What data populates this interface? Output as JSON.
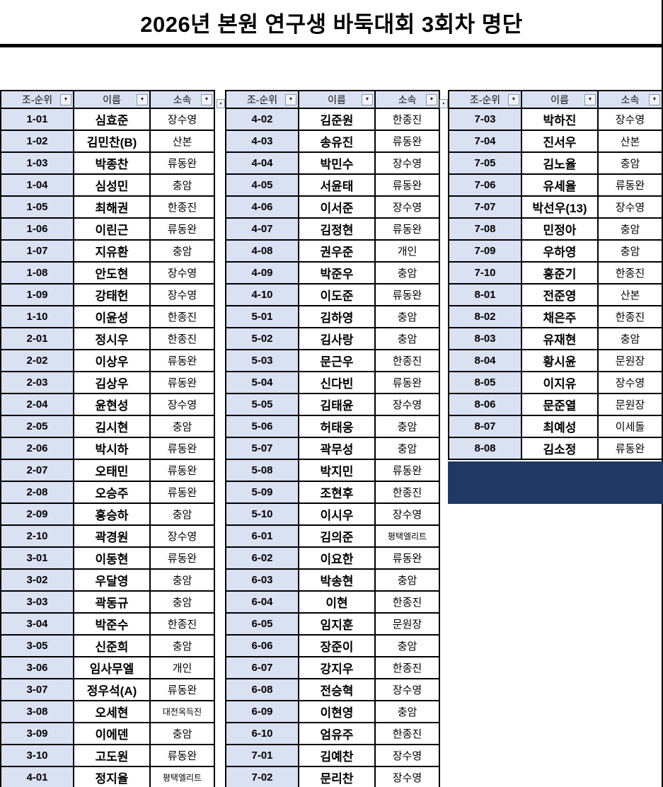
{
  "title": "2026년 본원 연구생 바둑대회 3회차 명단",
  "columns": [
    "조-순위",
    "이름",
    "소속"
  ],
  "filter_icon": "▼",
  "colors": {
    "header_fill": "#D9E1F2",
    "rank_fill": "#D9E1F2",
    "dark_block": "#1F3864",
    "border": "#000000"
  },
  "tables": [
    {
      "rows": [
        [
          "1-01",
          "심효준",
          "장수영"
        ],
        [
          "1-02",
          "김민찬(B)",
          "산본"
        ],
        [
          "1-03",
          "박종찬",
          "류동완"
        ],
        [
          "1-04",
          "심성민",
          "충암"
        ],
        [
          "1-05",
          "최해권",
          "한종진"
        ],
        [
          "1-06",
          "이린근",
          "류동완"
        ],
        [
          "1-07",
          "지유환",
          "충암"
        ],
        [
          "1-08",
          "안도현",
          "장수영"
        ],
        [
          "1-09",
          "강태헌",
          "장수영"
        ],
        [
          "1-10",
          "이윤성",
          "한종진"
        ],
        [
          "2-01",
          "정시우",
          "한종진"
        ],
        [
          "2-02",
          "이상우",
          "류동완"
        ],
        [
          "2-03",
          "김상우",
          "류동완"
        ],
        [
          "2-04",
          "윤현성",
          "장수영"
        ],
        [
          "2-05",
          "김시현",
          "충암"
        ],
        [
          "2-06",
          "박시하",
          "류동완"
        ],
        [
          "2-07",
          "오태민",
          "류동완"
        ],
        [
          "2-08",
          "오승주",
          "류동완"
        ],
        [
          "2-09",
          "홍승하",
          "충암"
        ],
        [
          "2-10",
          "곽경원",
          "장수영"
        ],
        [
          "3-01",
          "이동현",
          "류동완"
        ],
        [
          "3-02",
          "우달영",
          "충암"
        ],
        [
          "3-03",
          "곽동규",
          "충암"
        ],
        [
          "3-04",
          "박준수",
          "한종진"
        ],
        [
          "3-05",
          "신준희",
          "충암"
        ],
        [
          "3-06",
          "임사무엘",
          "개인"
        ],
        [
          "3-07",
          "정우석(A)",
          "류동완"
        ],
        [
          "3-08",
          "오세현",
          "대전옥득진"
        ],
        [
          "3-09",
          "이에덴",
          "충암"
        ],
        [
          "3-10",
          "고도원",
          "류동완"
        ],
        [
          "4-01",
          "정지율",
          "평택엘리트"
        ]
      ]
    },
    {
      "rows": [
        [
          "4-02",
          "김준원",
          "한종진"
        ],
        [
          "4-03",
          "송유진",
          "류동완"
        ],
        [
          "4-04",
          "박민수",
          "장수영"
        ],
        [
          "4-05",
          "서윤태",
          "류동완"
        ],
        [
          "4-06",
          "이서준",
          "장수영"
        ],
        [
          "4-07",
          "김정현",
          "류동완"
        ],
        [
          "4-08",
          "권우준",
          "개인"
        ],
        [
          "4-09",
          "박준우",
          "충암"
        ],
        [
          "4-10",
          "이도준",
          "류동완"
        ],
        [
          "5-01",
          "김하영",
          "충암"
        ],
        [
          "5-02",
          "김사랑",
          "충암"
        ],
        [
          "5-03",
          "문근우",
          "한종진"
        ],
        [
          "5-04",
          "신다빈",
          "류동완"
        ],
        [
          "5-05",
          "김태윤",
          "장수영"
        ],
        [
          "5-06",
          "허태웅",
          "충암"
        ],
        [
          "5-07",
          "곽무성",
          "충암"
        ],
        [
          "5-08",
          "박지민",
          "류동완"
        ],
        [
          "5-09",
          "조현후",
          "한종진"
        ],
        [
          "5-10",
          "이시우",
          "장수영"
        ],
        [
          "6-01",
          "김의준",
          "평택엘리트"
        ],
        [
          "6-02",
          "이요한",
          "류동완"
        ],
        [
          "6-03",
          "박송현",
          "충암"
        ],
        [
          "6-04",
          "이현",
          "한종진"
        ],
        [
          "6-05",
          "임지훈",
          "문원장"
        ],
        [
          "6-06",
          "장준이",
          "충암"
        ],
        [
          "6-07",
          "강지우",
          "한종진"
        ],
        [
          "6-08",
          "전승혁",
          "장수영"
        ],
        [
          "6-09",
          "이현영",
          "충암"
        ],
        [
          "6-10",
          "엄유주",
          "한종진"
        ],
        [
          "7-01",
          "김예찬",
          "장수영"
        ],
        [
          "7-02",
          "문리찬",
          "장수영"
        ]
      ]
    },
    {
      "rows": [
        [
          "7-03",
          "박하진",
          "장수영"
        ],
        [
          "7-04",
          "진서우",
          "산본"
        ],
        [
          "7-05",
          "김노율",
          "충암"
        ],
        [
          "7-06",
          "유세율",
          "류동완"
        ],
        [
          "7-07",
          "박선우(13)",
          "장수영"
        ],
        [
          "7-08",
          "민정아",
          "충암"
        ],
        [
          "7-09",
          "우하영",
          "충암"
        ],
        [
          "7-10",
          "홍준기",
          "한종진"
        ],
        [
          "8-01",
          "전준영",
          "산본"
        ],
        [
          "8-02",
          "채은주",
          "한종진"
        ],
        [
          "8-03",
          "유재현",
          "충암"
        ],
        [
          "8-04",
          "황시윤",
          "문원장"
        ],
        [
          "8-05",
          "이지유",
          "장수영"
        ],
        [
          "8-06",
          "문준열",
          "문원장"
        ],
        [
          "8-07",
          "최예성",
          "이세돌"
        ],
        [
          "8-08",
          "김소정",
          "류동완"
        ]
      ]
    }
  ]
}
